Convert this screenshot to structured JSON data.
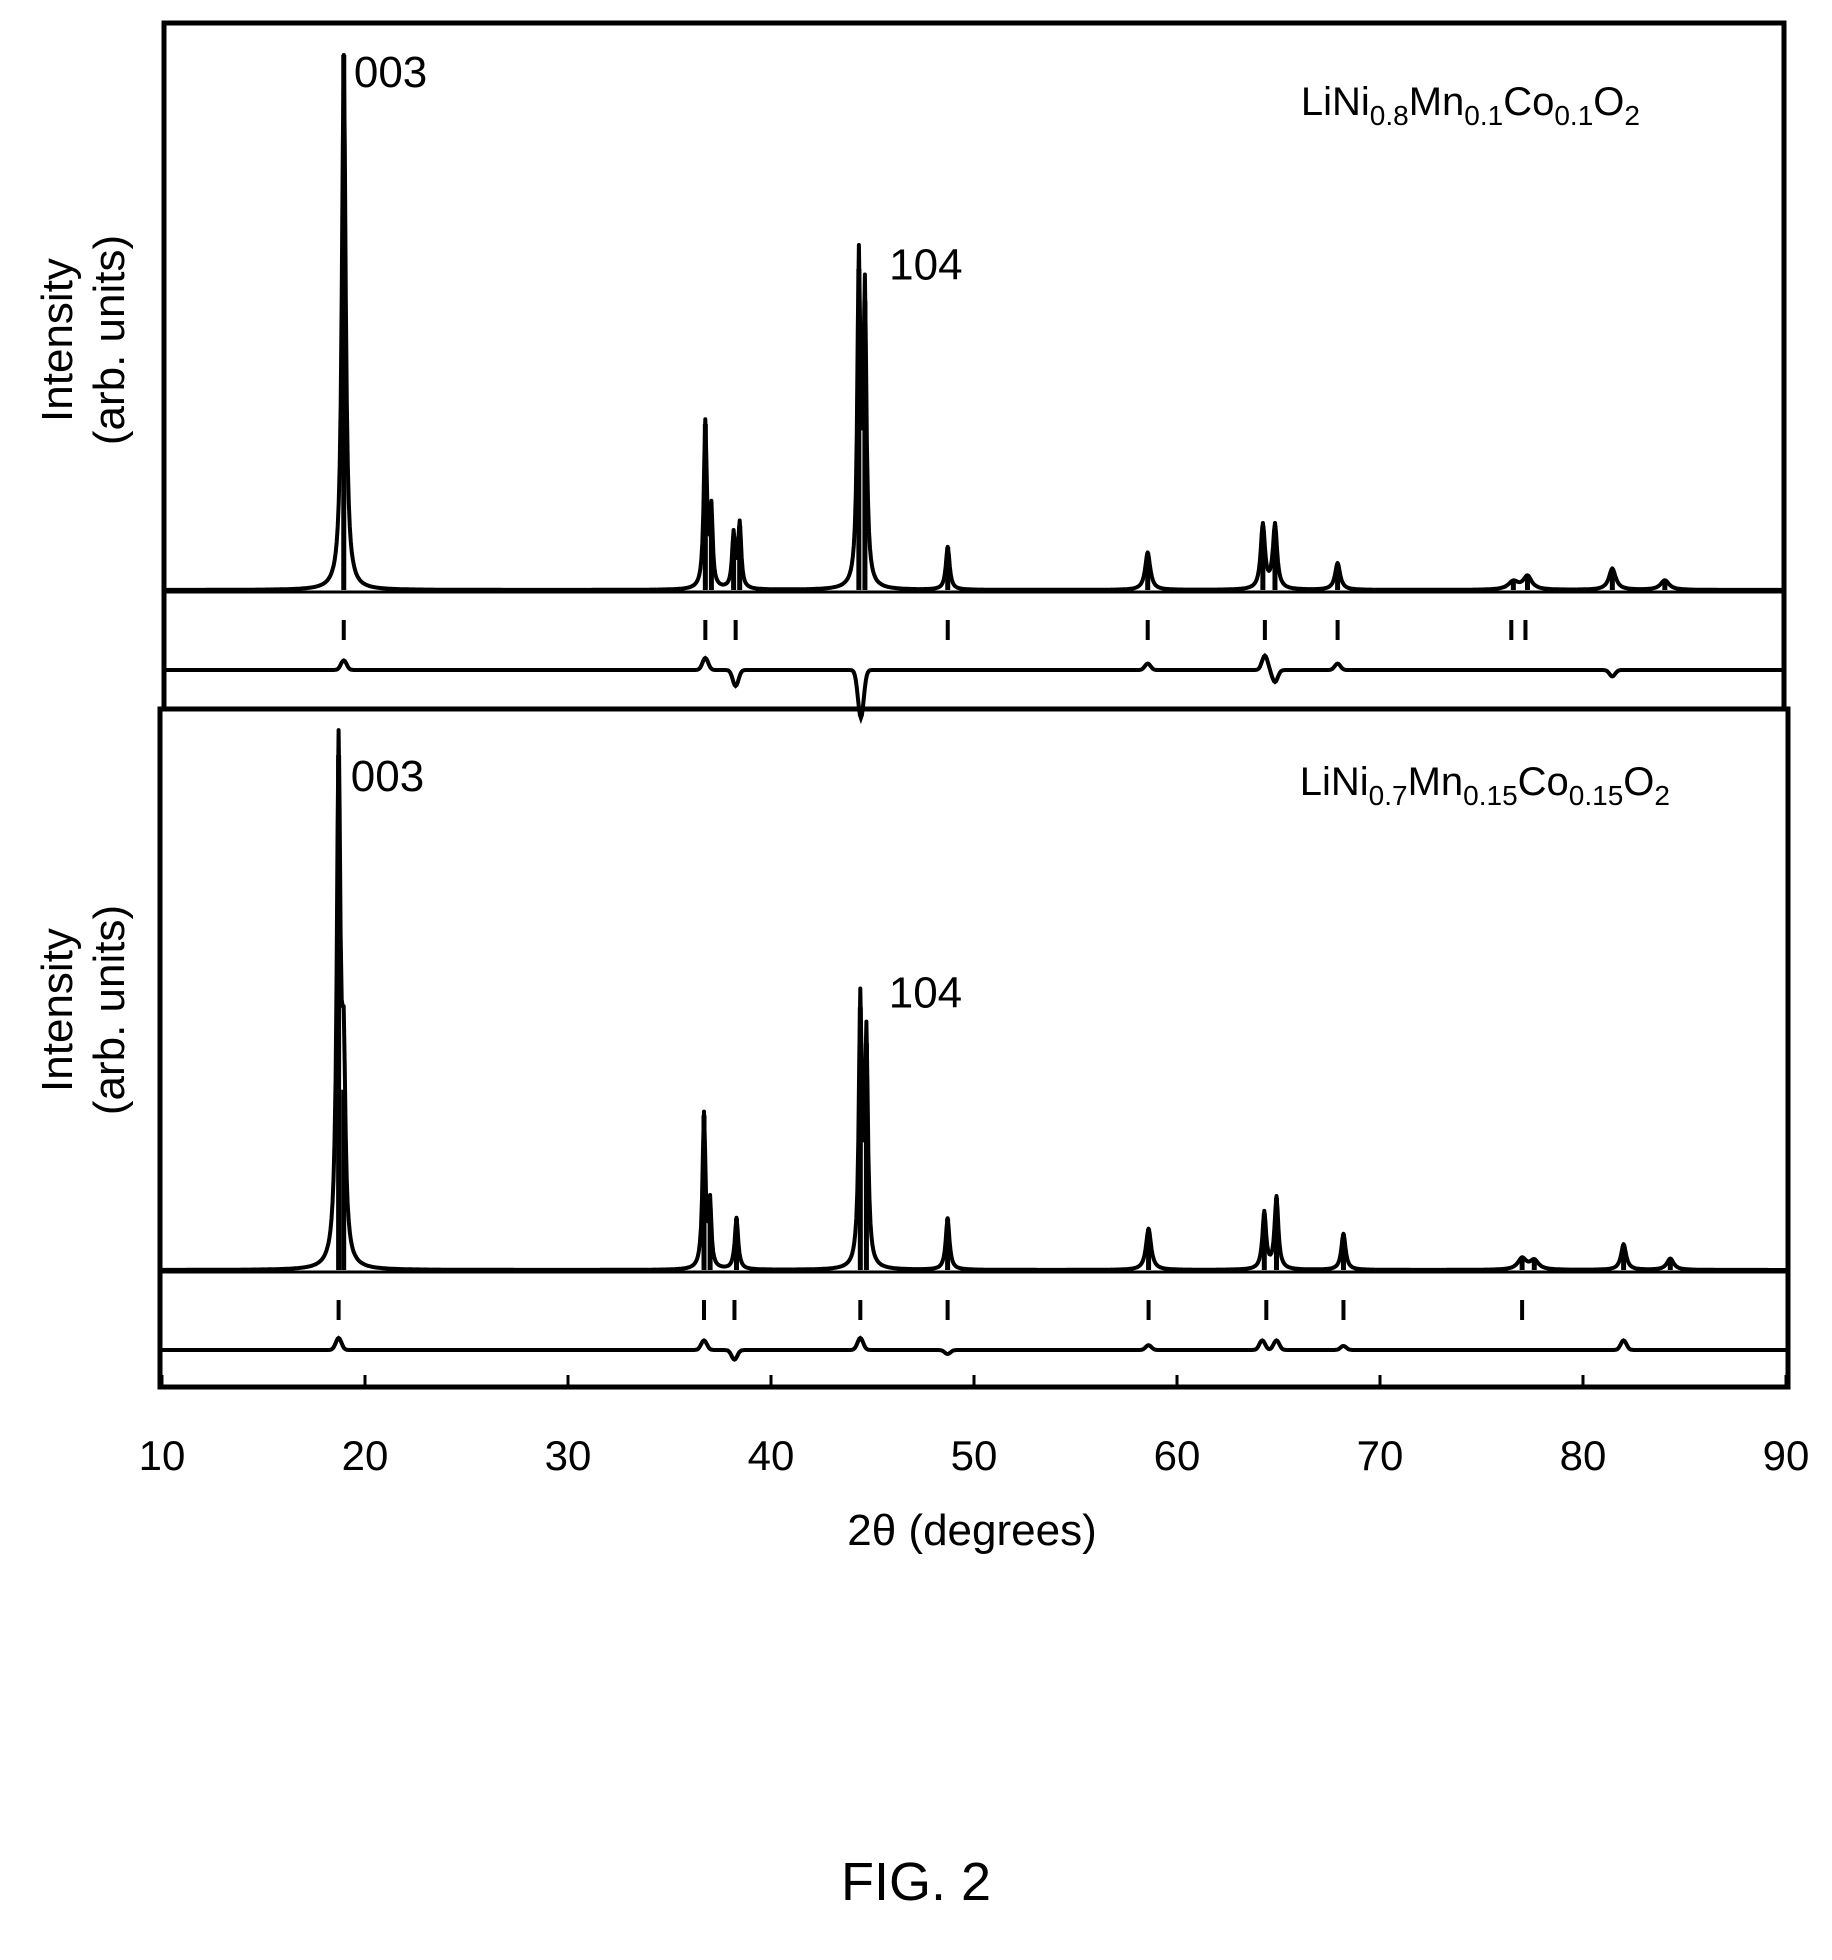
{
  "figure": {
    "caption": "FIG. 2"
  },
  "chart_data": [
    {
      "type": "line",
      "compound": {
        "parts": [
          {
            "t": "LiNi",
            "sub": false
          },
          {
            "t": "0.8",
            "sub": true
          },
          {
            "t": "Mn",
            "sub": false
          },
          {
            "t": "0.1",
            "sub": true
          },
          {
            "t": "Co",
            "sub": false
          },
          {
            "t": "0.1",
            "sub": true
          },
          {
            "t": "O",
            "sub": false
          },
          {
            "t": "2",
            "sub": true
          }
        ]
      },
      "ylabel_line1": "Intensity",
      "ylabel_line2": "(arb. units)",
      "xlim": [
        10,
        90
      ],
      "ylim": [
        0,
        100
      ],
      "baseline": 0,
      "grid": false,
      "peaks": [
        {
          "x": 18.8,
          "h": 100,
          "w": 0.22
        },
        {
          "x": 36.7,
          "h": 31,
          "w": 0.18
        },
        {
          "x": 37.0,
          "h": 14,
          "w": 0.15
        },
        {
          "x": 38.1,
          "h": 10,
          "w": 0.18
        },
        {
          "x": 38.4,
          "h": 12,
          "w": 0.18
        },
        {
          "x": 44.3,
          "h": 60,
          "w": 0.18
        },
        {
          "x": 44.6,
          "h": 54,
          "w": 0.18
        },
        {
          "x": 48.7,
          "h": 8,
          "w": 0.22
        },
        {
          "x": 58.6,
          "h": 7,
          "w": 0.3
        },
        {
          "x": 64.3,
          "h": 12,
          "w": 0.25
        },
        {
          "x": 64.9,
          "h": 12,
          "w": 0.25
        },
        {
          "x": 68.0,
          "h": 5,
          "w": 0.3
        },
        {
          "x": 76.7,
          "h": 1.5,
          "w": 0.6
        },
        {
          "x": 77.4,
          "h": 2.5,
          "w": 0.5
        },
        {
          "x": 81.6,
          "h": 4,
          "w": 0.4
        },
        {
          "x": 84.2,
          "h": 1.8,
          "w": 0.5
        }
      ],
      "reflection_marks": [
        18.8,
        36.7,
        38.2,
        48.7,
        58.6,
        64.4,
        68.0,
        76.6,
        77.3
      ],
      "difference_features": [
        {
          "x": 18.8,
          "a": 1.2
        },
        {
          "x": 36.7,
          "a": 1.5
        },
        {
          "x": 38.2,
          "a": -2
        },
        {
          "x": 44.4,
          "a": -6
        },
        {
          "x": 58.6,
          "a": 0.8
        },
        {
          "x": 64.4,
          "a": 1.8
        },
        {
          "x": 64.9,
          "a": -1.5
        },
        {
          "x": 68.0,
          "a": 0.8
        },
        {
          "x": 81.6,
          "a": -0.8
        }
      ],
      "annotations": [
        {
          "text": "003",
          "x": 19.3,
          "y": 94
        },
        {
          "text": "104",
          "x": 45.8,
          "y": 58
        }
      ]
    },
    {
      "type": "line",
      "compound": {
        "parts": [
          {
            "t": "LiNi",
            "sub": false
          },
          {
            "t": "0.7",
            "sub": true
          },
          {
            "t": "Mn",
            "sub": false
          },
          {
            "t": "0.15",
            "sub": true
          },
          {
            "t": "Co",
            "sub": false
          },
          {
            "t": "0.15",
            "sub": true
          },
          {
            "t": "O",
            "sub": false
          },
          {
            "t": "2",
            "sub": true
          }
        ]
      },
      "ylabel_line1": "Intensity",
      "ylabel_line2": "(arb. units)",
      "xlim": [
        10,
        90
      ],
      "ylim": [
        0,
        100
      ],
      "baseline": 0,
      "grid": false,
      "xlabel": "2θ (degrees)",
      "xticks": [
        10,
        20,
        30,
        40,
        50,
        60,
        70,
        80,
        90
      ],
      "peaks": [
        {
          "x": 18.7,
          "h": 100,
          "w": 0.22
        },
        {
          "x": 18.95,
          "h": 35,
          "w": 0.2
        },
        {
          "x": 36.7,
          "h": 30,
          "w": 0.18
        },
        {
          "x": 37.0,
          "h": 12,
          "w": 0.15
        },
        {
          "x": 38.3,
          "h": 10,
          "w": 0.2
        },
        {
          "x": 44.4,
          "h": 51,
          "w": 0.18
        },
        {
          "x": 44.7,
          "h": 44,
          "w": 0.18
        },
        {
          "x": 48.7,
          "h": 10,
          "w": 0.22
        },
        {
          "x": 58.6,
          "h": 8,
          "w": 0.3
        },
        {
          "x": 64.3,
          "h": 11,
          "w": 0.22
        },
        {
          "x": 64.9,
          "h": 14,
          "w": 0.22
        },
        {
          "x": 68.2,
          "h": 7,
          "w": 0.25
        },
        {
          "x": 77.0,
          "h": 2.2,
          "w": 0.5
        },
        {
          "x": 77.6,
          "h": 1.8,
          "w": 0.5
        },
        {
          "x": 82.0,
          "h": 5,
          "w": 0.3
        },
        {
          "x": 84.3,
          "h": 2.2,
          "w": 0.4
        }
      ],
      "reflection_marks": [
        18.7,
        36.7,
        38.2,
        44.4,
        48.7,
        58.6,
        64.4,
        68.2,
        77.0
      ],
      "difference_features": [
        {
          "x": 18.7,
          "a": 1.5
        },
        {
          "x": 36.7,
          "a": 1.2
        },
        {
          "x": 38.2,
          "a": -1.2
        },
        {
          "x": 44.4,
          "a": 1.5
        },
        {
          "x": 48.7,
          "a": -0.5
        },
        {
          "x": 58.6,
          "a": 0.6
        },
        {
          "x": 64.2,
          "a": 1.2
        },
        {
          "x": 64.9,
          "a": 1.2
        },
        {
          "x": 68.2,
          "a": 0.5
        },
        {
          "x": 82.0,
          "a": 1.2
        }
      ],
      "annotations": [
        {
          "text": "003",
          "x": 19.3,
          "y": 93
        },
        {
          "text": "104",
          "x": 45.8,
          "y": 51
        }
      ]
    }
  ]
}
